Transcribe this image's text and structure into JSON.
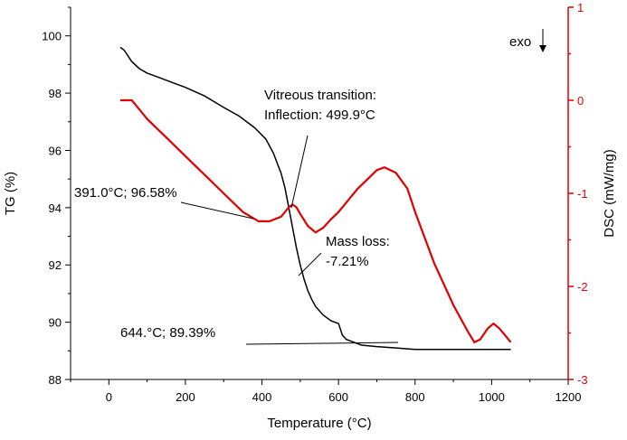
{
  "chart_data": {
    "type": "line",
    "xlabel": "Temperature (°C)",
    "ylabel_left": "TG (%)",
    "ylabel_right": "DSC (mW/mg)",
    "xlim": [
      -100,
      1200
    ],
    "ylim_left": [
      88,
      101
    ],
    "ylim_right": [
      -3,
      1
    ],
    "x_ticks": [
      0,
      200,
      400,
      600,
      800,
      1000,
      1200
    ],
    "y_left_ticks": [
      88,
      90,
      92,
      94,
      96,
      98,
      100
    ],
    "y_right_ticks": [
      -3,
      -2,
      -1,
      0,
      1
    ],
    "colors": {
      "tg": "#000000",
      "dsc": "#e00000",
      "right_axis": "#e00000"
    },
    "series": [
      {
        "axis": "left",
        "color": "#000000",
        "x": [
          30,
          40,
          60,
          80,
          100,
          130,
          160,
          200,
          250,
          300,
          340,
          380,
          410,
          430,
          450,
          460,
          470,
          480,
          490,
          500,
          510,
          520,
          530,
          540,
          560,
          580,
          600,
          610,
          620,
          640,
          660,
          700,
          750,
          800,
          850,
          900,
          950,
          1000,
          1050
        ],
        "y": [
          99.6,
          99.5,
          99.1,
          98.85,
          98.7,
          98.55,
          98.4,
          98.2,
          97.9,
          97.5,
          97.2,
          96.8,
          96.4,
          95.9,
          95.2,
          94.7,
          94.0,
          93.3,
          92.6,
          92.0,
          91.5,
          91.1,
          90.8,
          90.55,
          90.25,
          90.05,
          89.95,
          89.55,
          89.4,
          89.3,
          89.2,
          89.15,
          89.1,
          89.05,
          89.05,
          89.05,
          89.05,
          89.05,
          89.05
        ]
      },
      {
        "axis": "right",
        "color": "#e00000",
        "x": [
          30,
          60,
          80,
          100,
          150,
          200,
          250,
          300,
          350,
          391,
          420,
          450,
          470,
          480,
          490,
          500,
          520,
          540,
          560,
          580,
          600,
          650,
          700,
          720,
          750,
          780,
          800,
          850,
          900,
          920,
          940,
          955,
          970,
          990,
          1005,
          1020,
          1040,
          1050
        ],
        "y": [
          0.0,
          0.0,
          -0.1,
          -0.2,
          -0.4,
          -0.6,
          -0.8,
          -1.0,
          -1.2,
          -1.3,
          -1.3,
          -1.25,
          -1.15,
          -1.12,
          -1.15,
          -1.22,
          -1.35,
          -1.42,
          -1.37,
          -1.28,
          -1.2,
          -0.95,
          -0.75,
          -0.72,
          -0.78,
          -0.95,
          -1.2,
          -1.75,
          -2.2,
          -2.35,
          -2.5,
          -2.6,
          -2.57,
          -2.45,
          -2.4,
          -2.45,
          -2.55,
          -2.6
        ]
      }
    ],
    "annotations": [
      {
        "line1": "Vitreous transition:",
        "line2": "Inflection: 499.9°C"
      },
      {
        "text": "391.0°C; 96.58%"
      },
      {
        "line1": "Mass loss:",
        "line2": "-7.21%"
      },
      {
        "text": "644.°C; 89.39%"
      },
      {
        "text": "exo"
      }
    ]
  }
}
